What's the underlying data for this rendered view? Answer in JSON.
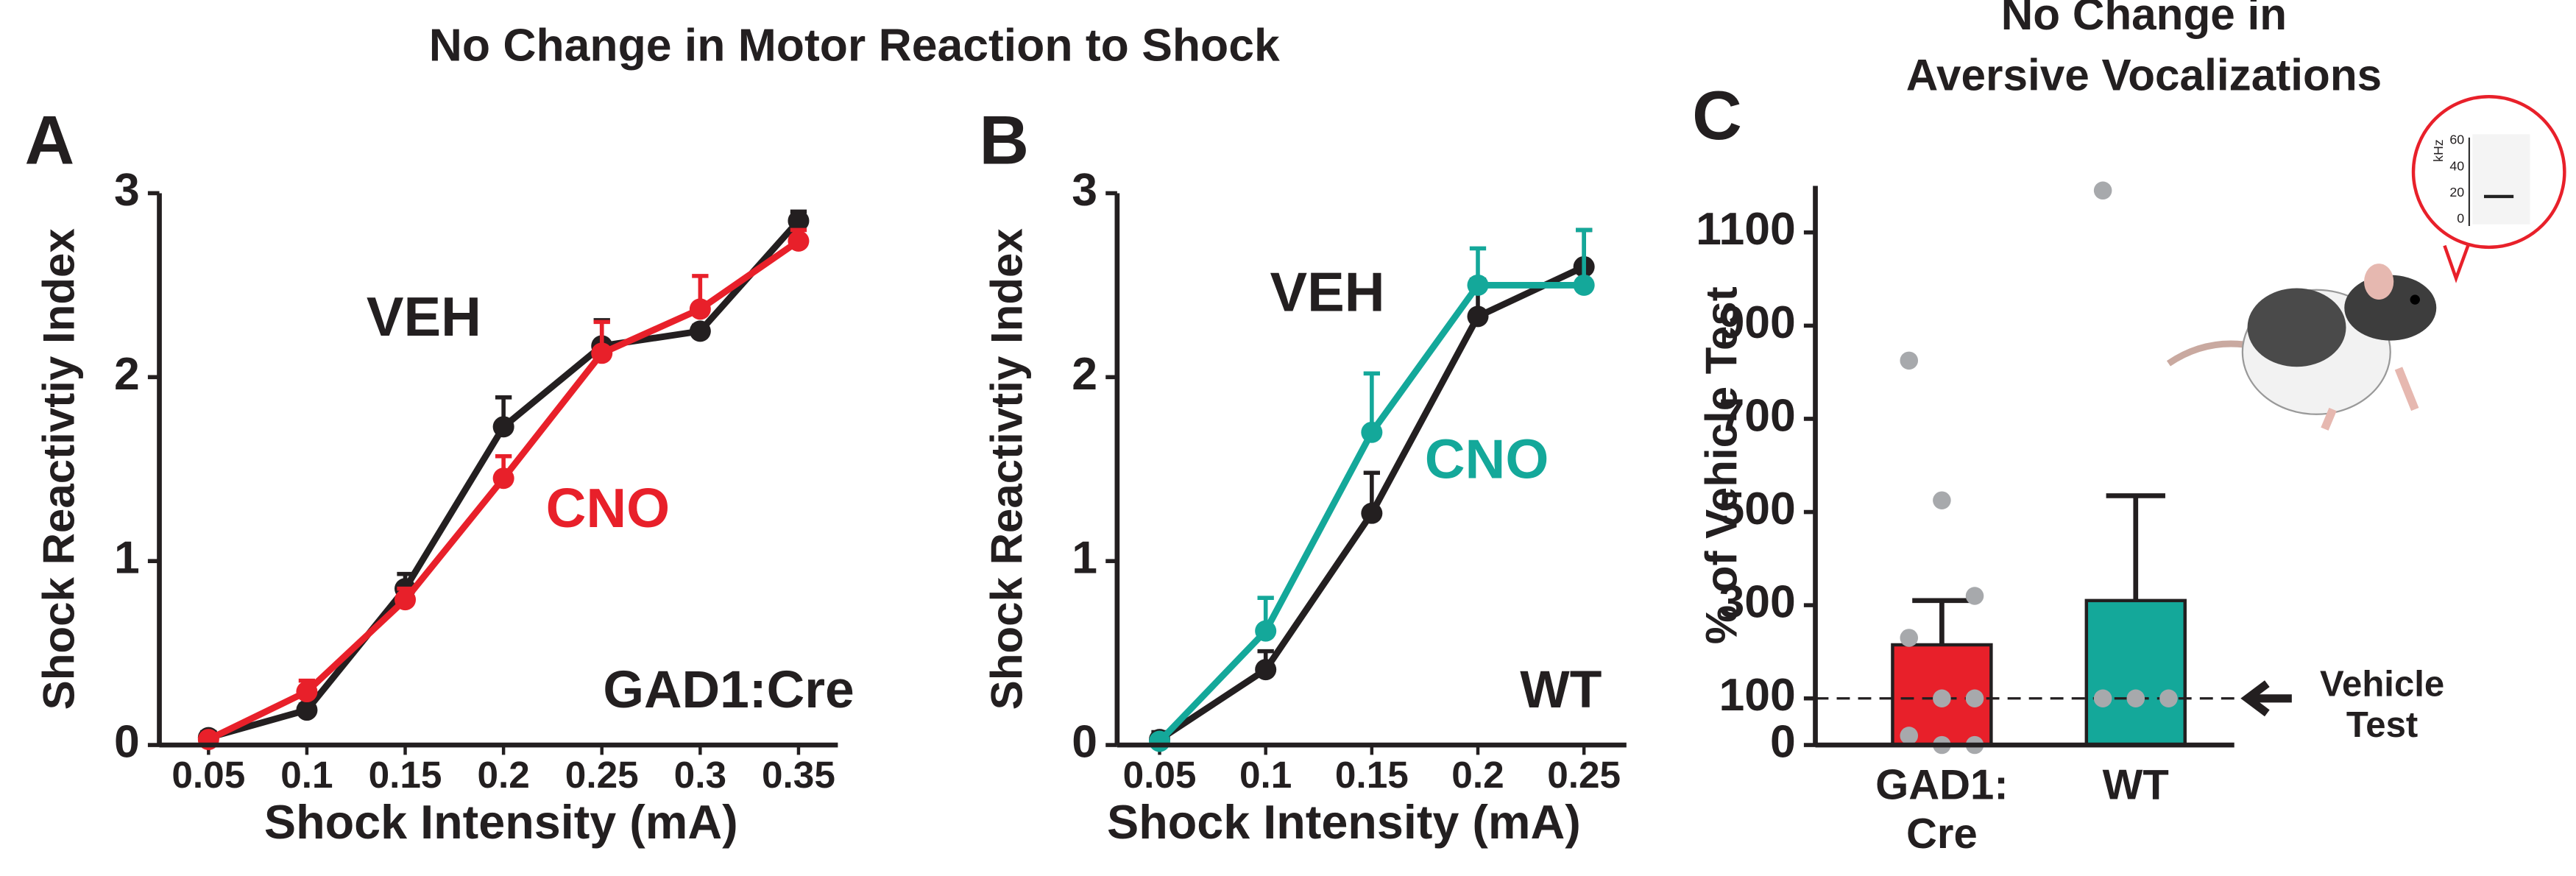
{
  "chart_data": [
    {
      "type": "line",
      "panel": "A",
      "title": "No Change in Motor Reaction to Shock",
      "x": [
        0.05,
        0.1,
        0.15,
        0.2,
        0.25,
        0.3,
        0.35
      ],
      "xlim": [
        0.025,
        0.37
      ],
      "xticks": [
        0.05,
        0.1,
        0.15,
        0.2,
        0.25,
        0.3,
        0.35
      ],
      "ylim": [
        0,
        3
      ],
      "yticks": [
        0,
        1,
        2,
        3
      ],
      "xlabel": "Shock Intensity (mA)",
      "ylabel": "Shock Reactivtiy Index",
      "annotation": "GAD1:Cre",
      "series": [
        {
          "name": "VEH",
          "color": "#231f20",
          "values": [
            0.04,
            0.19,
            0.85,
            1.73,
            2.17,
            2.25,
            2.85
          ],
          "errors": [
            0.03,
            0.03,
            0.08,
            0.16,
            0.14,
            0.03,
            0.05
          ]
        },
        {
          "name": "CNO",
          "color": "#e8202a",
          "values": [
            0.03,
            0.29,
            0.79,
            1.45,
            2.13,
            2.37,
            2.74
          ],
          "errors": [
            0.02,
            0.06,
            0.06,
            0.12,
            0.17,
            0.18,
            0.06
          ]
        }
      ]
    },
    {
      "type": "line",
      "panel": "B",
      "x": [
        0.05,
        0.1,
        0.15,
        0.2,
        0.25
      ],
      "xlim": [
        0.03,
        0.27
      ],
      "xticks": [
        0.05,
        0.1,
        0.15,
        0.2,
        0.25
      ],
      "ylim": [
        0,
        3
      ],
      "yticks": [
        0,
        1,
        2,
        3
      ],
      "xlabel": "Shock Intensity (mA)",
      "ylabel": "Shock Reactivtiy Index",
      "annotation": "WT",
      "series": [
        {
          "name": "VEH",
          "color": "#231f20",
          "values": [
            0.03,
            0.41,
            1.26,
            2.33,
            2.6
          ],
          "errors": [
            0.04,
            0.1,
            0.22,
            0.2,
            0.2
          ]
        },
        {
          "name": "CNO",
          "color": "#14a89a",
          "values": [
            0.02,
            0.62,
            1.7,
            2.5,
            2.5
          ],
          "errors": [
            0.02,
            0.18,
            0.32,
            0.2,
            0.3
          ]
        }
      ]
    },
    {
      "type": "bar",
      "panel": "C",
      "title": [
        "No Change in",
        "Aversive Vocalizations"
      ],
      "categories": [
        "GAD1: Cre",
        "WT"
      ],
      "values": [
        215,
        310
      ],
      "errors": [
        95,
        225
      ],
      "colors": [
        "#e8202a",
        "#14a89a"
      ],
      "points": [
        [
          825,
          525,
          320,
          230,
          100,
          100,
          20,
          0,
          0
        ],
        [
          1190,
          100,
          100,
          100
        ]
      ],
      "ylim": [
        0,
        1200
      ],
      "yticks": [
        0,
        100,
        300,
        500,
        700,
        900,
        1100
      ],
      "ylabel": "% of Vehicle Test",
      "reference_line": {
        "value": 100,
        "label": "Vehicle Test"
      },
      "inset": {
        "label": "kHz",
        "ticks": [
          0,
          20,
          40,
          60
        ]
      }
    }
  ]
}
